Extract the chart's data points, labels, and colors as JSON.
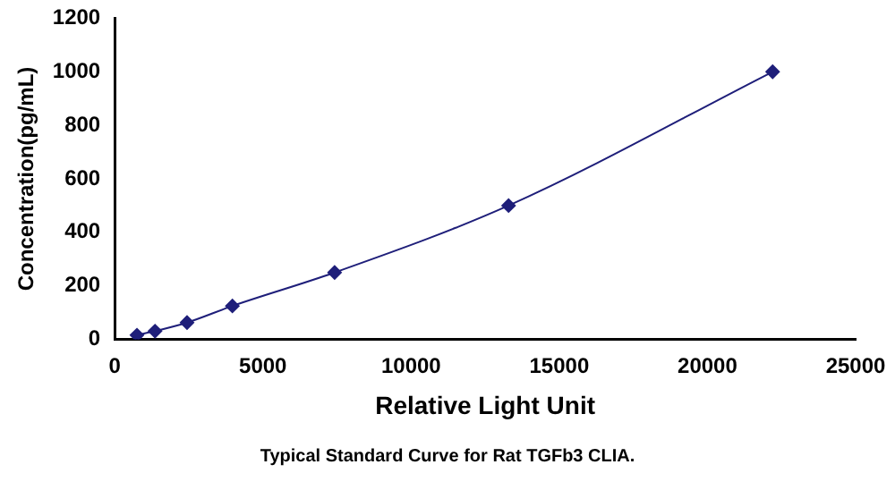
{
  "chart_data": {
    "type": "line",
    "xlabel": "Relative Light Unit",
    "ylabel": "Concentration(pg/mL)",
    "annotations": [
      "Typical Standard Curve for Rat TGFb3 CLIA."
    ],
    "x": [
      750,
      1360,
      2440,
      3970,
      7420,
      13290,
      22200
    ],
    "series": [
      {
        "color": "#1f1f7a",
        "values": [
          16,
          31,
          63,
          125,
          250,
          500,
          1000
        ]
      }
    ],
    "xlim": [
      0,
      25000
    ],
    "xticks": [
      0,
      5000,
      10000,
      15000,
      20000,
      25000
    ],
    "ylim": [
      0,
      1200
    ],
    "yticks": [
      0,
      200,
      400,
      600,
      800,
      1000,
      1200
    ],
    "grid": false,
    "legend": false,
    "marker": "diamond",
    "line_style": "solid"
  }
}
